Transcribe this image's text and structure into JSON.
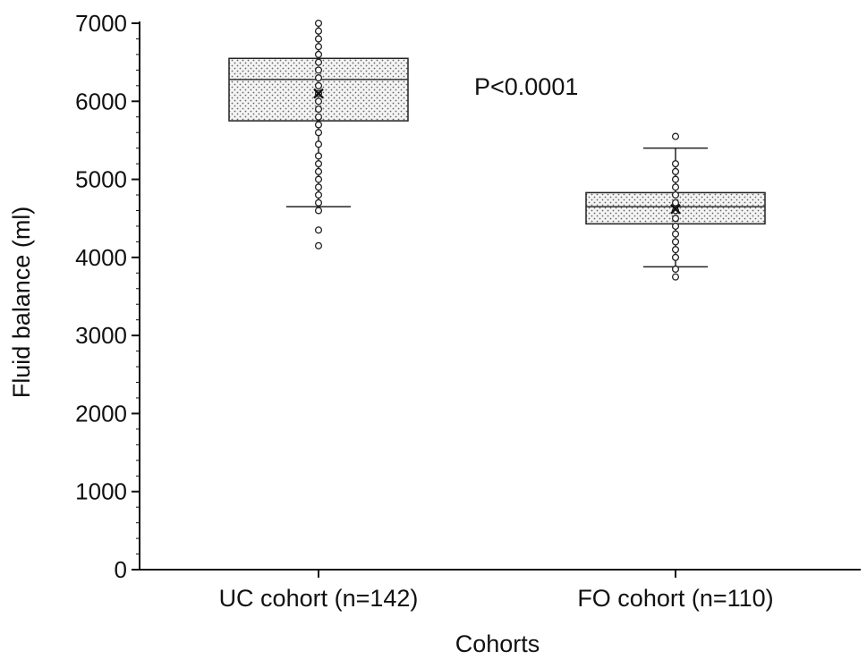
{
  "chart_data": {
    "type": "box",
    "title": "",
    "xlabel": "Cohorts",
    "ylabel": "Fluid balance (ml)",
    "ylim": [
      0,
      7000
    ],
    "y_ticks": [
      0,
      1000,
      2000,
      3000,
      4000,
      5000,
      6000,
      7000
    ],
    "y_tick_labels": [
      "0",
      "1000",
      "2000",
      "3000",
      "4000",
      "5000",
      "6000",
      "7000"
    ],
    "y_minor_step": 200,
    "grid": false,
    "annotation": "P<0.0001",
    "categories": [
      "UC cohort (n=142)",
      "FO cohort (n=110)"
    ],
    "boxes": [
      {
        "category": "UC cohort (n=142)",
        "whisker_low": 4650,
        "q1": 5750,
        "median": 6280,
        "mean": 6100,
        "q3": 6550,
        "whisker_high": 7000,
        "points": [
          7000,
          6900,
          6800,
          6700,
          6600,
          6500,
          6400,
          6300,
          6200,
          6100,
          6000,
          5900,
          5800,
          5700,
          5600,
          5450,
          5300,
          5200,
          5100,
          5000,
          4900,
          4800,
          4700,
          4600,
          4350,
          4150
        ]
      },
      {
        "category": "FO cohort (n=110)",
        "whisker_low": 3880,
        "q1": 4430,
        "median": 4650,
        "mean": 4620,
        "q3": 4830,
        "whisker_high": 5400,
        "points": [
          5550,
          5200,
          5100,
          5000,
          4900,
          4800,
          4700,
          4600,
          4500,
          4400,
          4300,
          4200,
          4100,
          4000,
          3850,
          3750
        ]
      }
    ]
  }
}
